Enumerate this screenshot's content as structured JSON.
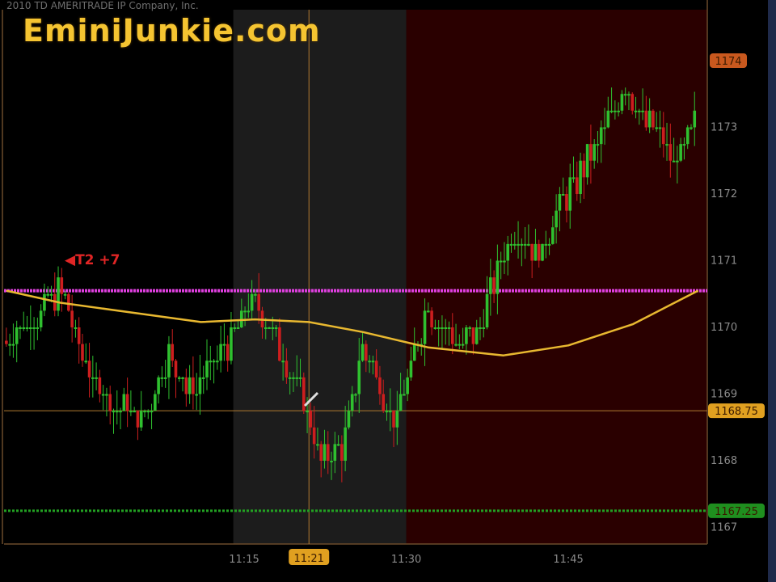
{
  "watermark": "EminiJunkie.com",
  "copyright": "2010 TD AMERITRADE IP Company, Inc.",
  "annotation": {
    "label": "T2 +7",
    "color": "#e02525"
  },
  "colors": {
    "up": "#2fc02f",
    "down": "#cc1e1e",
    "moving_average": "#e8b830",
    "target_line": "#e040e0",
    "stop_line": "#22a022",
    "crosshair": "#b07a30",
    "zone_pre": "#000000",
    "zone_mid": "#1c1c1c",
    "zone_post": "#2a0000"
  },
  "chart_data": {
    "type": "candlestick",
    "title": "",
    "y_axis": {
      "ticks": [
        1167,
        1168,
        1169,
        1170,
        1171,
        1172,
        1173,
        1174
      ],
      "range": [
        1166.8,
        1174.8
      ],
      "side": "right"
    },
    "x_axis": {
      "ticks": [
        "11:15",
        "11:30",
        "11:45"
      ],
      "range": [
        "10:53",
        "11:58"
      ]
    },
    "grid": false,
    "price_path": [
      {
        "time": "10:53",
        "price": 1169.8
      },
      {
        "time": "10:58",
        "price": 1170.55
      },
      {
        "time": "11:01",
        "price": 1169.2
      },
      {
        "time": "11:03",
        "price": 1168.85
      },
      {
        "time": "11:06",
        "price": 1168.7
      },
      {
        "time": "11:08",
        "price": 1169.6
      },
      {
        "time": "11:10",
        "price": 1169.0
      },
      {
        "time": "11:13",
        "price": 1169.6
      },
      {
        "time": "11:16",
        "price": 1170.5
      },
      {
        "time": "11:18",
        "price": 1169.8
      },
      {
        "time": "11:21",
        "price": 1168.7
      },
      {
        "time": "11:22",
        "price": 1168.0
      },
      {
        "time": "11:24",
        "price": 1168.2
      },
      {
        "time": "11:26",
        "price": 1169.7
      },
      {
        "time": "11:29",
        "price": 1168.6
      },
      {
        "time": "11:32",
        "price": 1170.3
      },
      {
        "time": "11:35",
        "price": 1169.7
      },
      {
        "time": "11:37",
        "price": 1170.1
      },
      {
        "time": "11:40",
        "price": 1171.5
      },
      {
        "time": "11:42",
        "price": 1171.0
      },
      {
        "time": "11:45",
        "price": 1172.0
      },
      {
        "time": "11:48",
        "price": 1172.85
      },
      {
        "time": "11:50",
        "price": 1173.6
      },
      {
        "time": "11:52",
        "price": 1173.1
      },
      {
        "time": "11:55",
        "price": 1172.5
      },
      {
        "time": "11:57",
        "price": 1173.15
      }
    ],
    "moving_average": [
      {
        "time": "10:53",
        "price": 1170.55
      },
      {
        "time": "10:58",
        "price": 1170.37
      },
      {
        "time": "11:11",
        "price": 1170.08
      },
      {
        "time": "11:16",
        "price": 1170.12
      },
      {
        "time": "11:21",
        "price": 1170.08
      },
      {
        "time": "11:26",
        "price": 1169.93
      },
      {
        "time": "11:32",
        "price": 1169.7
      },
      {
        "time": "11:39",
        "price": 1169.58
      },
      {
        "time": "11:45",
        "price": 1169.73
      },
      {
        "time": "11:51",
        "price": 1170.05
      },
      {
        "time": "11:57",
        "price": 1170.55
      }
    ],
    "zones": [
      {
        "start": "10:53",
        "end": "11:14",
        "shade": "pre"
      },
      {
        "start": "11:14",
        "end": "11:30",
        "shade": "mid"
      },
      {
        "start": "11:30",
        "end": "11:58",
        "shade": "post"
      }
    ],
    "horizontal_lines": [
      {
        "price": 1170.55,
        "style": "target"
      },
      {
        "price": 1168.75,
        "style": "crosshair",
        "label": "1168.75",
        "label_color": "#e0a020"
      },
      {
        "price": 1167.25,
        "style": "stop",
        "label": "1167.25",
        "label_color": "#1f8f1f"
      }
    ],
    "price_badge_top": {
      "label": "1174",
      "color": "#c8581e"
    },
    "crosshair_time": {
      "label": "11:21",
      "color": "#e0a020"
    }
  }
}
